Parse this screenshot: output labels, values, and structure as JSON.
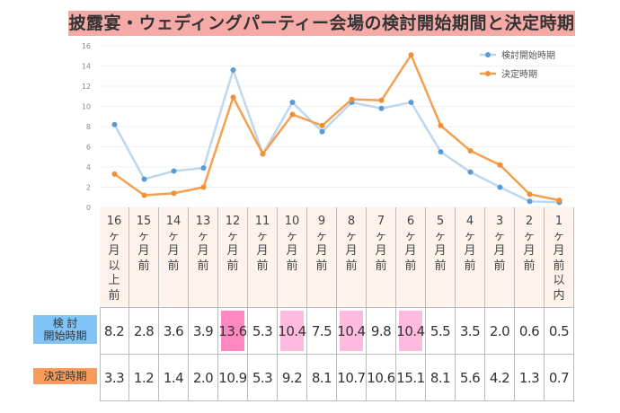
{
  "chart_data": {
    "type": "line",
    "title": "披露宴・ウェディングパーティー会場の検討開始期間と決定時期",
    "categories": [
      [
        "16",
        "ヶ",
        "月",
        "以",
        "上",
        "前"
      ],
      [
        "15",
        "ヶ",
        "月",
        "前"
      ],
      [
        "14",
        "ヶ",
        "月",
        "前"
      ],
      [
        "13",
        "ヶ",
        "月",
        "前"
      ],
      [
        "12",
        "ヶ",
        "月",
        "前"
      ],
      [
        "11",
        "ヶ",
        "月",
        "前"
      ],
      [
        "10",
        "ヶ",
        "月",
        "前"
      ],
      [
        "9",
        "ヶ",
        "月",
        "前"
      ],
      [
        "8",
        "ヶ",
        "月",
        "前"
      ],
      [
        "7",
        "ヶ",
        "月",
        "前"
      ],
      [
        "6",
        "ヶ",
        "月",
        "前"
      ],
      [
        "5",
        "ヶ",
        "月",
        "前"
      ],
      [
        "4",
        "ヶ",
        "月",
        "前"
      ],
      [
        "3",
        "ヶ",
        "月",
        "前"
      ],
      [
        "2",
        "ヶ",
        "月",
        "前"
      ],
      [
        "1",
        "ヶ",
        "月",
        "前",
        "以",
        "内"
      ]
    ],
    "ylim": [
      0,
      16
    ],
    "yticks": [
      0,
      2,
      4,
      6,
      8,
      10,
      12,
      14,
      16
    ],
    "grid": true,
    "legend_position": "top-right",
    "series": [
      {
        "name": "検討開始時期",
        "row_label": [
          "検 討",
          "開始時期"
        ],
        "color": "#5b9bd5",
        "line_color": "#bdd7ee",
        "label_bg": "#7fc3f7",
        "values": [
          "8.2",
          "2.8",
          "3.6",
          "3.9",
          "13.6",
          "5.3",
          "10.4",
          "7.5",
          "10.4",
          "9.8",
          "10.4",
          "5.5",
          "3.5",
          "2.0",
          "0.6",
          "0.5"
        ],
        "highlights": {
          "4": "#ff88c0",
          "6": "#ffbadf",
          "8": "#ffbadf",
          "10": "#ffbadf"
        }
      },
      {
        "name": "決定時期",
        "row_label": [
          "決定時期"
        ],
        "color": "#f28e35",
        "line_color": "#f5a050",
        "label_bg": "#f79a5c",
        "values": [
          "3.3",
          "1.2",
          "1.4",
          "2.0",
          "10.9",
          "5.3",
          "9.2",
          "8.1",
          "10.7",
          "10.6",
          "15.1",
          "8.1",
          "5.6",
          "4.2",
          "1.3",
          "0.7"
        ],
        "highlights": {}
      }
    ]
  }
}
